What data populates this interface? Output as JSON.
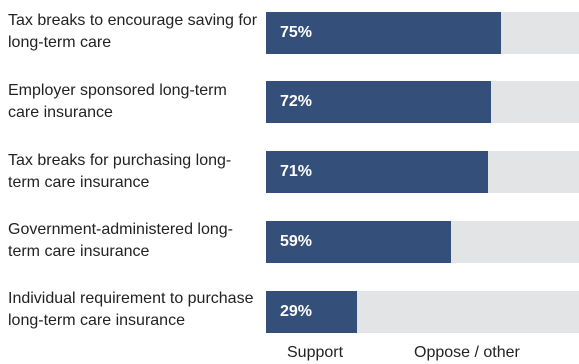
{
  "chart_data": {
    "type": "bar",
    "orientation": "horizontal",
    "stacked": true,
    "categories": [
      "Tax breaks to encourage saving for long-term care",
      "Employer sponsored long-term care insurance",
      "Tax breaks for purchasing long-term care insurance",
      "Government-administered long-term care insurance",
      "Individual requirement to purchase long-term care insurance"
    ],
    "series": [
      {
        "name": "Support",
        "values": [
          75,
          72,
          71,
          59,
          29
        ],
        "color": "#34507a"
      },
      {
        "name": "Oppose / other",
        "values": [
          25,
          28,
          29,
          41,
          71
        ],
        "color": "#e3e4e6"
      }
    ],
    "data_labels": [
      "75%",
      "72%",
      "71%",
      "59%",
      "29%"
    ],
    "xlim": [
      0,
      100
    ],
    "grid": false,
    "legend": "bottom"
  }
}
